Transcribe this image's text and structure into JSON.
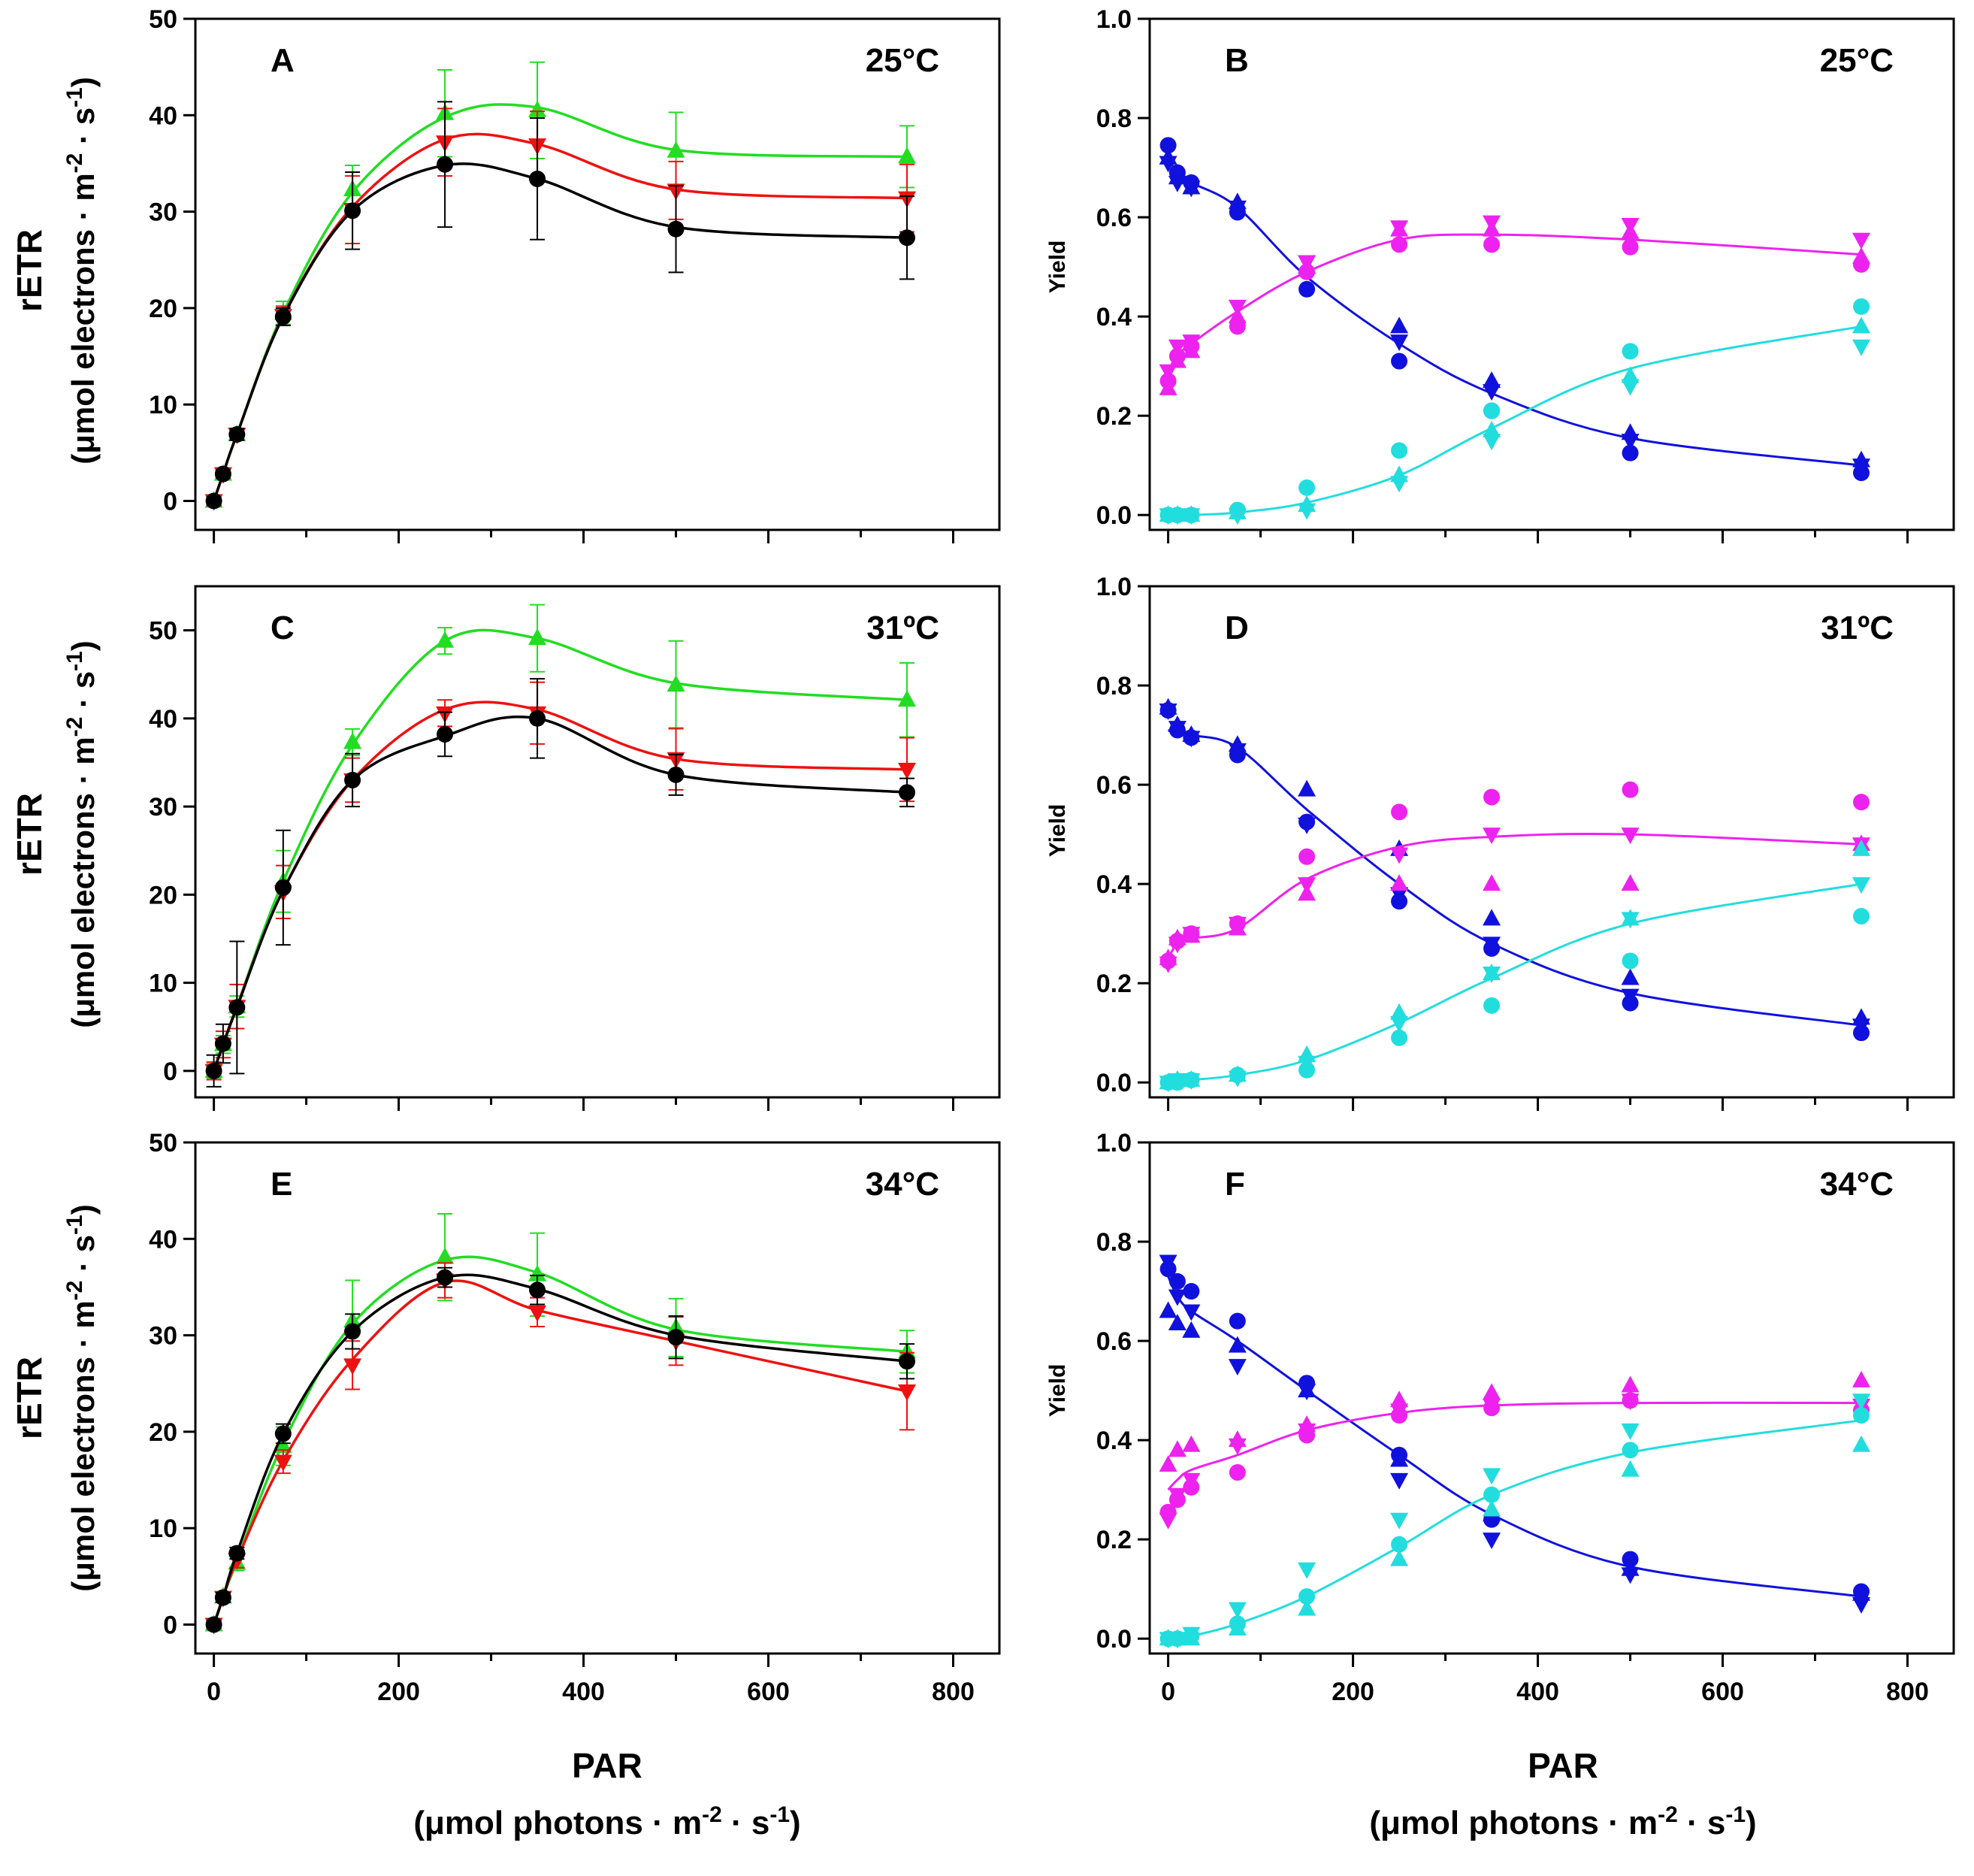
{
  "figure": {
    "x_label": "PAR",
    "x_label_sub": "(μmol photons · m-2 · s-1)",
    "x_label_sub_parts": [
      "(μmol photons · m",
      "-2",
      " · s",
      "-1",
      ")"
    ],
    "y_label_left": "rETR",
    "y_label_left_sub": "(μmol electrons · m-2 · s-1)",
    "y_label_left_sub_parts": [
      "(μmol electrons · m",
      "-2",
      " · s",
      "-1",
      ")"
    ],
    "y_label_right": "Yield",
    "colors": {
      "black": "#000000",
      "green": "#22dd22",
      "red": "#ee1111",
      "blue": "#1111dd",
      "magenta": "#ee22ee",
      "cyan": "#22dddd"
    }
  },
  "chart_data": [
    {
      "panel": "A",
      "temperature": "25°C",
      "type": "line",
      "ylabel": "rETR",
      "xlabel": "PAR",
      "xlim": [
        -20,
        850
      ],
      "ylim": [
        -3,
        50
      ],
      "xticks": [
        0,
        200,
        400,
        600,
        800
      ],
      "yticks": [
        0,
        10,
        20,
        30,
        40,
        50
      ],
      "show_x_tick_labels": false,
      "x": [
        0,
        10,
        25,
        75,
        150,
        250,
        350,
        500,
        750
      ],
      "series": [
        {
          "name": "green",
          "color": "#22dd22",
          "marker": "triangle-up",
          "values": [
            0,
            2.8,
            6.9,
            19.5,
            32.3,
            40.2,
            40.5,
            36.3,
            35.7
          ],
          "errors": [
            0.5,
            0.4,
            0.6,
            1.2,
            2.5,
            4.5,
            5.0,
            4.0,
            3.2
          ],
          "curve": [
            0,
            2.8,
            6.9,
            19.5,
            32,
            39.8,
            40.8,
            36.4,
            35.7
          ]
        },
        {
          "name": "red",
          "color": "#ee1111",
          "marker": "triangle-down",
          "values": [
            0,
            2.8,
            6.9,
            19.2,
            30.2,
            37.2,
            36.9,
            32.2,
            31.4
          ],
          "errors": [
            0.5,
            0.4,
            0.6,
            1.0,
            3.5,
            3.5,
            3.5,
            3.0,
            3.5
          ],
          "curve": [
            0,
            2.8,
            6.9,
            19.2,
            30.5,
            37.5,
            37.0,
            32.3,
            31.4
          ]
        },
        {
          "name": "black",
          "color": "#000000",
          "marker": "circle",
          "values": [
            0,
            2.8,
            6.9,
            19.1,
            30.1,
            34.9,
            33.4,
            28.2,
            27.3
          ],
          "errors": [
            0.4,
            0.4,
            0.6,
            0.9,
            4.0,
            6.5,
            6.3,
            4.5,
            4.3
          ],
          "curve": [
            0,
            2.8,
            6.9,
            19.1,
            30.1,
            34.8,
            33.4,
            28.4,
            27.3
          ]
        }
      ]
    },
    {
      "panel": "B",
      "temperature": "25°C",
      "type": "scatter",
      "ylabel": "Yield",
      "xlabel": "PAR",
      "xlim": [
        -20,
        850
      ],
      "ylim": [
        -0.03,
        1.0
      ],
      "xticks": [
        0,
        200,
        400,
        600,
        800
      ],
      "yticks": [
        0.0,
        0.2,
        0.4,
        0.6,
        0.8,
        1.0
      ],
      "show_x_tick_labels": false,
      "x": [
        0,
        10,
        25,
        75,
        150,
        250,
        350,
        500,
        750
      ],
      "series": [
        {
          "name": "blue",
          "color": "#1111dd",
          "points": {
            "circle": [
              0.745,
              0.69,
              0.67,
              0.61,
              0.455,
              0.31,
              0.21,
              0.125,
              0.085
            ],
            "triangle-up": [
              0.72,
              0.68,
              0.66,
              0.63,
              0.5,
              0.38,
              0.27,
              0.165,
              0.11
            ],
            "triangle-down": [
              0.71,
              0.67,
              0.66,
              0.62,
              0.51,
              0.35,
              0.25,
              0.15,
              0.1
            ]
          },
          "curve": [
            0.72,
            0.69,
            0.67,
            0.62,
            0.48,
            0.345,
            0.245,
            0.155,
            0.1
          ]
        },
        {
          "name": "magenta",
          "color": "#ee22ee",
          "points": {
            "circle": [
              0.27,
              0.32,
              0.34,
              0.38,
              0.49,
              0.545,
              0.545,
              0.54,
              0.505
            ],
            "triangle-up": [
              0.255,
              0.31,
              0.33,
              0.4,
              0.5,
              0.575,
              0.575,
              0.57,
              0.52
            ],
            "triangle-down": [
              0.29,
              0.34,
              0.35,
              0.42,
              0.51,
              0.58,
              0.59,
              0.585,
              0.555
            ]
          },
          "curve": [
            0.28,
            0.32,
            0.345,
            0.41,
            0.49,
            0.555,
            0.565,
            0.555,
            0.525
          ]
        },
        {
          "name": "cyan",
          "color": "#22dddd",
          "points": {
            "circle": [
              0.0,
              0.0,
              0.0,
              0.01,
              0.055,
              0.13,
              0.21,
              0.33,
              0.42
            ],
            "triangle-up": [
              0.0,
              0.0,
              0.0,
              0.005,
              0.02,
              0.08,
              0.17,
              0.28,
              0.38
            ],
            "triangle-down": [
              0.0,
              0.0,
              0.0,
              0.0,
              0.01,
              0.065,
              0.15,
              0.26,
              0.34
            ]
          },
          "curve": [
            0.0,
            0.0,
            0.0,
            0.005,
            0.025,
            0.08,
            0.175,
            0.295,
            0.38
          ]
        }
      ]
    },
    {
      "panel": "C",
      "temperature": "31ºC",
      "type": "line",
      "ylabel": "rETR",
      "xlabel": "PAR",
      "xlim": [
        -20,
        850
      ],
      "ylim": [
        -3,
        55
      ],
      "xticks": [
        0,
        200,
        400,
        600,
        800
      ],
      "yticks": [
        0,
        10,
        20,
        30,
        40,
        50
      ],
      "show_x_tick_labels": false,
      "x": [
        0,
        10,
        25,
        75,
        150,
        250,
        350,
        500,
        750
      ],
      "series": [
        {
          "name": "green",
          "color": "#22dd22",
          "marker": "triangle-up",
          "values": [
            0,
            3.0,
            7.3,
            21.5,
            37.3,
            48.8,
            49.1,
            43.8,
            42.1
          ],
          "errors": [
            0.8,
            1.0,
            1.2,
            3.5,
            1.5,
            1.5,
            3.8,
            5.0,
            4.2
          ],
          "curve": [
            0,
            3.0,
            7.3,
            21.5,
            37.0,
            48.8,
            49.1,
            44.0,
            42.1
          ]
        },
        {
          "name": "red",
          "color": "#ee1111",
          "marker": "triangle-down",
          "values": [
            0,
            3.0,
            7.3,
            20.3,
            33.0,
            40.6,
            40.6,
            35.4,
            34.2
          ],
          "errors": [
            1.0,
            1.5,
            2.5,
            3.0,
            2.5,
            1.5,
            3.5,
            3.5,
            3.6
          ],
          "curve": [
            0,
            3.0,
            7.3,
            20.5,
            33.0,
            41.0,
            41.0,
            35.4,
            34.2
          ]
        },
        {
          "name": "black",
          "color": "#000000",
          "marker": "circle",
          "values": [
            0,
            3.1,
            7.2,
            20.8,
            33.0,
            38.2,
            40.0,
            33.6,
            31.6
          ],
          "errors": [
            1.8,
            2.2,
            7.5,
            6.5,
            3.0,
            2.5,
            4.5,
            2.3,
            1.6
          ],
          "curve": [
            0,
            3.0,
            7.2,
            20.5,
            33.0,
            38.0,
            40.0,
            33.6,
            31.6
          ]
        }
      ]
    },
    {
      "panel": "D",
      "temperature": "31ºC",
      "type": "scatter",
      "ylabel": "Yield",
      "xlabel": "PAR",
      "xlim": [
        -20,
        850
      ],
      "ylim": [
        -0.03,
        1.0
      ],
      "xticks": [
        0,
        200,
        400,
        600,
        800
      ],
      "yticks": [
        0.0,
        0.2,
        0.4,
        0.6,
        0.8,
        1.0
      ],
      "show_x_tick_labels": false,
      "x": [
        0,
        10,
        25,
        75,
        150,
        250,
        350,
        500,
        750
      ],
      "series": [
        {
          "name": "blue",
          "color": "#1111dd",
          "points": {
            "circle": [
              0.75,
              0.71,
              0.695,
              0.66,
              0.525,
              0.365,
              0.27,
              0.16,
              0.1
            ],
            "triangle-up": [
              0.755,
              0.72,
              0.7,
              0.68,
              0.59,
              0.47,
              0.33,
              0.21,
              0.13
            ],
            "triangle-down": [
              0.75,
              0.715,
              0.695,
              0.67,
              0.52,
              0.38,
              0.28,
              0.175,
              0.115
            ]
          },
          "curve": [
            0.71,
            0.705,
            0.7,
            0.675,
            0.55,
            0.4,
            0.28,
            0.18,
            0.115
          ]
        },
        {
          "name": "magenta",
          "color": "#ee22ee",
          "points": {
            "circle": [
              0.245,
              0.285,
              0.3,
              0.32,
              0.455,
              0.545,
              0.575,
              0.59,
              0.565
            ],
            "triangle-up": [
              0.25,
              0.29,
              0.295,
              0.31,
              0.38,
              0.4,
              0.4,
              0.4,
              0.48
            ],
            "triangle-down": [
              0.24,
              0.28,
              0.3,
              0.32,
              0.4,
              0.46,
              0.5,
              0.5,
              0.48
            ]
          },
          "curve": [
            0.25,
            0.28,
            0.29,
            0.31,
            0.41,
            0.475,
            0.495,
            0.5,
            0.48
          ]
        },
        {
          "name": "cyan",
          "color": "#22dddd",
          "points": {
            "circle": [
              0.0,
              0.0,
              0.005,
              0.015,
              0.025,
              0.09,
              0.155,
              0.245,
              0.335
            ],
            "triangle-up": [
              0.0,
              0.005,
              0.005,
              0.015,
              0.055,
              0.14,
              0.22,
              0.33,
              0.47
            ],
            "triangle-down": [
              0.0,
              0.005,
              0.005,
              0.01,
              0.04,
              0.12,
              0.22,
              0.33,
              0.4
            ]
          },
          "curve": [
            0.0,
            0.002,
            0.005,
            0.015,
            0.045,
            0.12,
            0.21,
            0.32,
            0.4
          ]
        }
      ]
    },
    {
      "panel": "E",
      "temperature": "34°C",
      "type": "line",
      "ylabel": "rETR",
      "xlabel": "PAR",
      "xlim": [
        -20,
        850
      ],
      "ylim": [
        -3,
        50
      ],
      "xticks": [
        0,
        200,
        400,
        600,
        800
      ],
      "yticks": [
        0,
        10,
        20,
        30,
        40,
        50
      ],
      "show_x_tick_labels": true,
      "x": [
        0,
        10,
        25,
        75,
        150,
        250,
        350,
        500,
        750
      ],
      "series": [
        {
          "name": "green",
          "color": "#22dd22",
          "marker": "triangle-up",
          "values": [
            0,
            2.9,
            6.4,
            18.5,
            31.5,
            38.1,
            36.3,
            30.8,
            28.3
          ],
          "errors": [
            0.4,
            0.5,
            0.8,
            2.0,
            4.2,
            4.5,
            4.3,
            3.0,
            2.2
          ],
          "curve": [
            0,
            2.9,
            6.6,
            18.8,
            31.2,
            37.8,
            36.5,
            30.6,
            28.3
          ]
        },
        {
          "name": "red",
          "color": "#ee1111",
          "marker": "triangle-down",
          "values": [
            0,
            2.8,
            6.7,
            16.9,
            26.9,
            35.7,
            32.4,
            29.4,
            24.2
          ],
          "errors": [
            0.4,
            0.5,
            0.8,
            1.2,
            2.5,
            1.8,
            1.5,
            2.5,
            4.0
          ],
          "curve": [
            0,
            2.8,
            6.7,
            17.0,
            27.5,
            35.5,
            32.6,
            29.4,
            24.2
          ]
        },
        {
          "name": "black",
          "color": "#000000",
          "marker": "circle",
          "values": [
            0,
            2.8,
            7.4,
            19.8,
            30.4,
            36.0,
            34.7,
            29.8,
            27.3
          ],
          "errors": [
            0.4,
            0.5,
            0.6,
            1.0,
            1.8,
            1.0,
            1.5,
            2.2,
            1.8
          ],
          "curve": [
            0,
            2.8,
            7.4,
            19.8,
            30.4,
            36.0,
            34.8,
            30.0,
            27.3
          ]
        }
      ]
    },
    {
      "panel": "F",
      "temperature": "34°C",
      "type": "scatter",
      "ylabel": "Yield",
      "xlabel": "PAR",
      "xlim": [
        -20,
        850
      ],
      "ylim": [
        -0.03,
        1.0
      ],
      "xticks": [
        0,
        200,
        400,
        600,
        800
      ],
      "yticks": [
        0.0,
        0.2,
        0.4,
        0.6,
        0.8,
        1.0
      ],
      "show_x_tick_labels": true,
      "x": [
        0,
        10,
        25,
        75,
        150,
        250,
        350,
        500,
        750
      ],
      "series": [
        {
          "name": "blue",
          "color": "#1111dd",
          "points": {
            "circle": [
              0.745,
              0.72,
              0.7,
              0.64,
              0.515,
              0.37,
              0.24,
              0.16,
              0.095
            ],
            "triangle-up": [
              0.66,
              0.635,
              0.62,
              0.59,
              0.5,
              0.36,
              0.25,
              0.14,
              0.09
            ],
            "triangle-down": [
              0.76,
              0.69,
              0.66,
              0.55,
              0.5,
              0.32,
              0.2,
              0.13,
              0.07
            ]
          },
          "curve": [
            0.73,
            0.69,
            0.66,
            0.6,
            0.5,
            0.37,
            0.25,
            0.145,
            0.085
          ]
        },
        {
          "name": "magenta",
          "color": "#ee22ee",
          "points": {
            "circle": [
              0.255,
              0.28,
              0.305,
              0.335,
              0.41,
              0.45,
              0.465,
              0.48,
              0.46
            ],
            "triangle-up": [
              0.35,
              0.38,
              0.39,
              0.4,
              0.43,
              0.48,
              0.495,
              0.51,
              0.52
            ],
            "triangle-down": [
              0.24,
              0.29,
              0.32,
              0.39,
              0.42,
              0.46,
              0.47,
              0.48,
              0.47
            ]
          },
          "curve": [
            0.3,
            0.32,
            0.34,
            0.37,
            0.42,
            0.455,
            0.47,
            0.475,
            0.475
          ]
        },
        {
          "name": "cyan",
          "color": "#22dddd",
          "points": {
            "circle": [
              0.0,
              0.0,
              0.005,
              0.03,
              0.085,
              0.19,
              0.29,
              0.38,
              0.45
            ],
            "triangle-up": [
              0.0,
              0.0,
              0.0,
              0.02,
              0.06,
              0.16,
              0.26,
              0.34,
              0.39
            ],
            "triangle-down": [
              0.0,
              0.0,
              0.01,
              0.06,
              0.14,
              0.24,
              0.33,
              0.42,
              0.48
            ]
          },
          "curve": [
            0.0,
            0.0,
            0.005,
            0.03,
            0.085,
            0.185,
            0.29,
            0.375,
            0.44
          ]
        }
      ]
    }
  ]
}
